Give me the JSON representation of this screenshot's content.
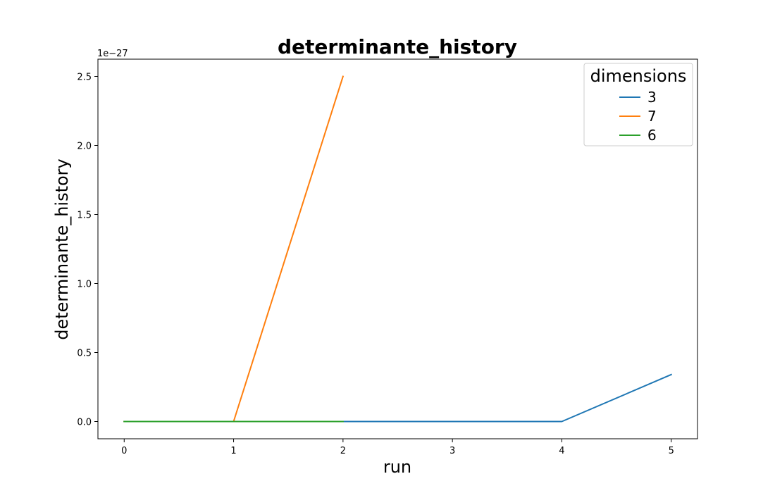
{
  "chart_data": {
    "type": "line",
    "title": "determinante_history",
    "xlabel": "run",
    "ylabel": "determinante_history",
    "y_offset_label": "1e−27",
    "xlim": [
      -0.24,
      5.24
    ],
    "ylim": [
      -0.125,
      2.625
    ],
    "x_ticks": [
      0,
      1,
      2,
      3,
      4,
      5
    ],
    "x_tick_labels": [
      "0",
      "1",
      "2",
      "3",
      "4",
      "5"
    ],
    "y_ticks": [
      0.0,
      0.5,
      1.0,
      1.5,
      2.0,
      2.5
    ],
    "y_tick_labels": [
      "0.0",
      "0.5",
      "1.0",
      "1.5",
      "2.0",
      "2.5"
    ],
    "grid": false,
    "legend": {
      "title": "dimensions",
      "placement": "upper-right"
    },
    "series": [
      {
        "name": "3",
        "color": "#1f77b4",
        "x": [
          0,
          1,
          2,
          3,
          4,
          5
        ],
        "y": [
          0.0,
          0.0,
          0.0,
          0.0,
          0.0,
          0.34
        ]
      },
      {
        "name": "7",
        "color": "#ff7f0e",
        "x": [
          0,
          1,
          2
        ],
        "y": [
          0.0,
          0.0,
          2.5
        ]
      },
      {
        "name": "6",
        "color": "#2ca02c",
        "x": [
          0,
          1,
          2
        ],
        "y": [
          0.0,
          0.0,
          0.0
        ]
      }
    ]
  }
}
